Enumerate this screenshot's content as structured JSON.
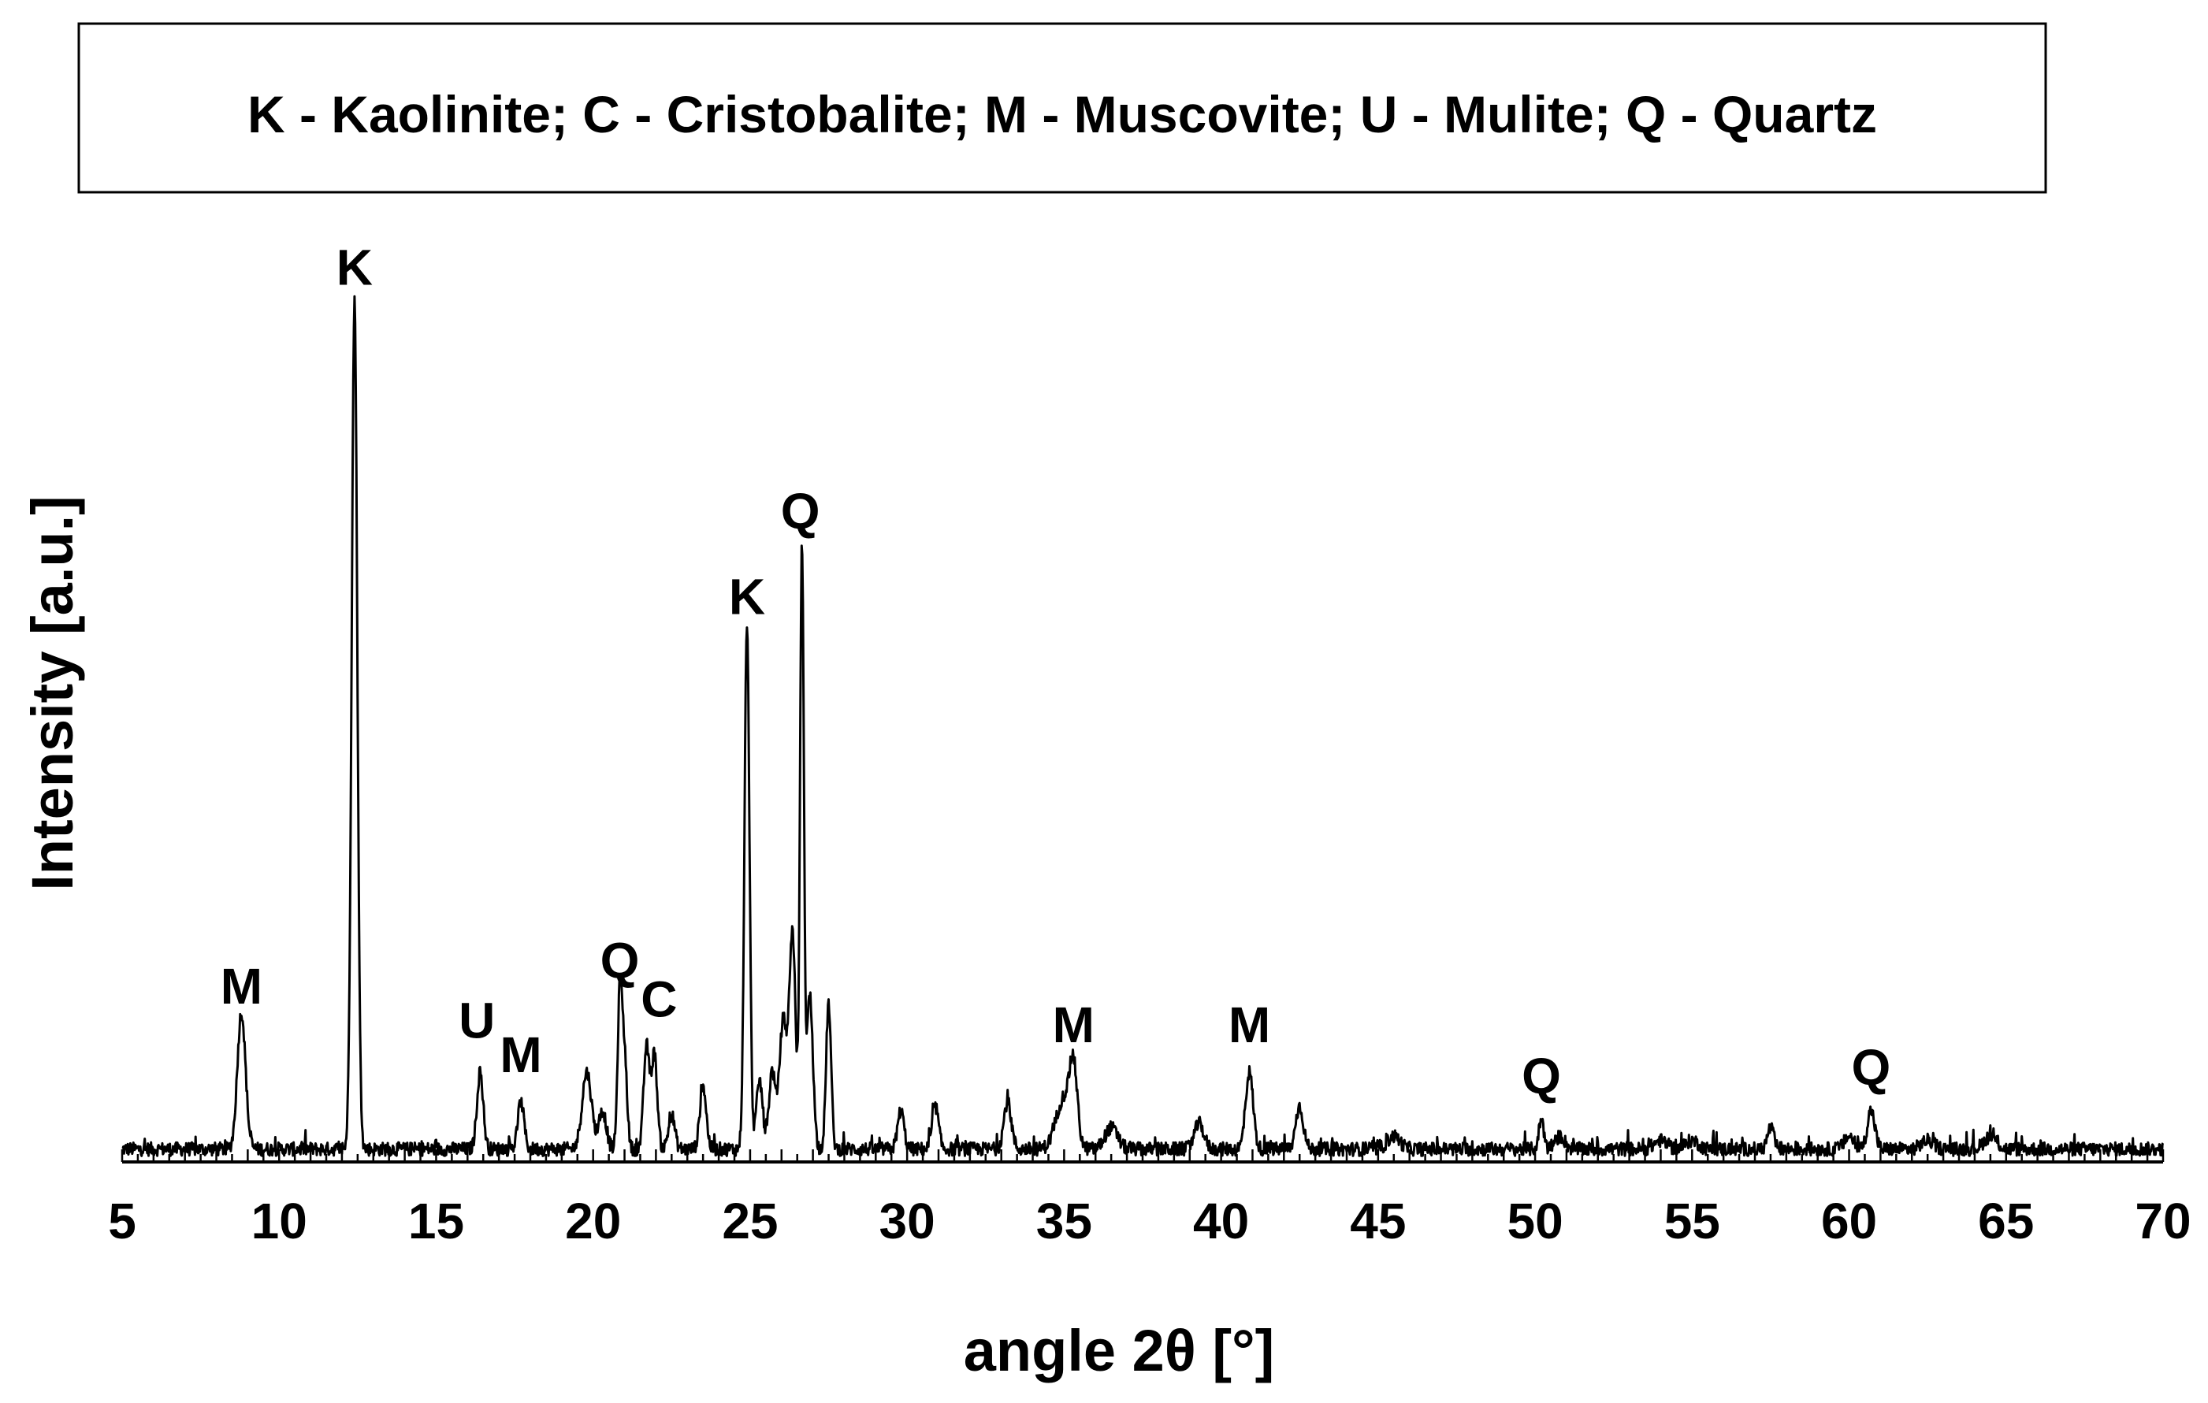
{
  "chart_data": {
    "type": "line",
    "title": "",
    "legend_text": "K - Kaolinite; C - Cristobalite; M - Muscovite; U - Mulite; Q - Quartz",
    "legend_position": "top",
    "xlabel": "angle 2θ [°]",
    "ylabel": "Intensity [a.u.]",
    "xlim": [
      5,
      70
    ],
    "ylim": [
      0,
      110
    ],
    "grid": false,
    "xticks": [
      "5",
      "10",
      "15",
      "20",
      "25",
      "30",
      "35",
      "40",
      "45",
      "50",
      "55",
      "60",
      "65",
      "70"
    ],
    "baseline": 1.5,
    "peaks": [
      {
        "x": 8.8,
        "h": 16,
        "w": 0.13
      },
      {
        "x": 12.4,
        "h": 99,
        "w": 0.09
      },
      {
        "x": 16.4,
        "h": 9,
        "w": 0.1
      },
      {
        "x": 17.7,
        "h": 5.5,
        "w": 0.1
      },
      {
        "x": 19.8,
        "h": 9,
        "w": 0.15
      },
      {
        "x": 20.3,
        "h": 4.5,
        "w": 0.12
      },
      {
        "x": 20.85,
        "h": 18,
        "w": 0.07
      },
      {
        "x": 21.0,
        "h": 11,
        "w": 0.08
      },
      {
        "x": 21.7,
        "h": 12,
        "w": 0.09
      },
      {
        "x": 21.95,
        "h": 11,
        "w": 0.09
      },
      {
        "x": 22.5,
        "h": 4,
        "w": 0.1
      },
      {
        "x": 23.5,
        "h": 7.5,
        "w": 0.1
      },
      {
        "x": 24.9,
        "h": 61,
        "w": 0.08
      },
      {
        "x": 25.3,
        "h": 8,
        "w": 0.1
      },
      {
        "x": 25.7,
        "h": 9,
        "w": 0.1
      },
      {
        "x": 26.05,
        "h": 15,
        "w": 0.12
      },
      {
        "x": 26.35,
        "h": 25,
        "w": 0.1
      },
      {
        "x": 26.65,
        "h": 70,
        "w": 0.06
      },
      {
        "x": 26.9,
        "h": 18,
        "w": 0.1
      },
      {
        "x": 27.5,
        "h": 17,
        "w": 0.08
      },
      {
        "x": 29.8,
        "h": 4.5,
        "w": 0.1
      },
      {
        "x": 30.9,
        "h": 5,
        "w": 0.1
      },
      {
        "x": 33.2,
        "h": 5.5,
        "w": 0.12
      },
      {
        "x": 35.0,
        "h": 6,
        "w": 0.25
      },
      {
        "x": 35.3,
        "h": 8,
        "w": 0.12
      },
      {
        "x": 36.5,
        "h": 2.5,
        "w": 0.2
      },
      {
        "x": 39.3,
        "h": 3,
        "w": 0.15
      },
      {
        "x": 40.9,
        "h": 9,
        "w": 0.12
      },
      {
        "x": 42.5,
        "h": 5,
        "w": 0.12
      },
      {
        "x": 45.5,
        "h": 1.5,
        "w": 0.2
      },
      {
        "x": 50.2,
        "h": 3.5,
        "w": 0.08
      },
      {
        "x": 50.8,
        "h": 1.5,
        "w": 0.15
      },
      {
        "x": 54.0,
        "h": 1,
        "w": 0.2
      },
      {
        "x": 55.0,
        "h": 1,
        "w": 0.2
      },
      {
        "x": 57.5,
        "h": 2.5,
        "w": 0.1
      },
      {
        "x": 60.0,
        "h": 1.5,
        "w": 0.15
      },
      {
        "x": 60.7,
        "h": 4.5,
        "w": 0.12
      },
      {
        "x": 62.5,
        "h": 1,
        "w": 0.2
      },
      {
        "x": 64.5,
        "h": 1.5,
        "w": 0.2
      }
    ],
    "annotations": [
      {
        "text": "M",
        "x": 8.8,
        "y": 18.5
      },
      {
        "text": "K",
        "x": 12.4,
        "y": 102.5
      },
      {
        "text": "U",
        "x": 16.3,
        "y": 14.5
      },
      {
        "text": "M",
        "x": 17.7,
        "y": 10.5
      },
      {
        "text": "Q",
        "x": 20.85,
        "y": 21.5
      },
      {
        "text": "C",
        "x": 22.1,
        "y": 17
      },
      {
        "text": "K",
        "x": 24.9,
        "y": 64
      },
      {
        "text": "Q",
        "x": 26.6,
        "y": 74
      },
      {
        "text": "M",
        "x": 35.3,
        "y": 14
      },
      {
        "text": "M",
        "x": 40.9,
        "y": 14
      },
      {
        "text": "Q",
        "x": 50.2,
        "y": 8
      },
      {
        "text": "Q",
        "x": 60.7,
        "y": 9
      }
    ]
  }
}
